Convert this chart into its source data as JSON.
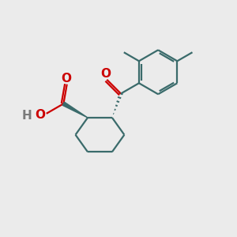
{
  "bg_color": "#ebebeb",
  "bond_color": "#3a6b6b",
  "o_color": "#cc0000",
  "h_color": "#7a7a7a",
  "bond_width": 1.6,
  "font_size_atom": 11,
  "fig_size": [
    3.0,
    3.0
  ],
  "dpi": 100,
  "xlim": [
    0,
    10
  ],
  "ylim": [
    0,
    10
  ]
}
